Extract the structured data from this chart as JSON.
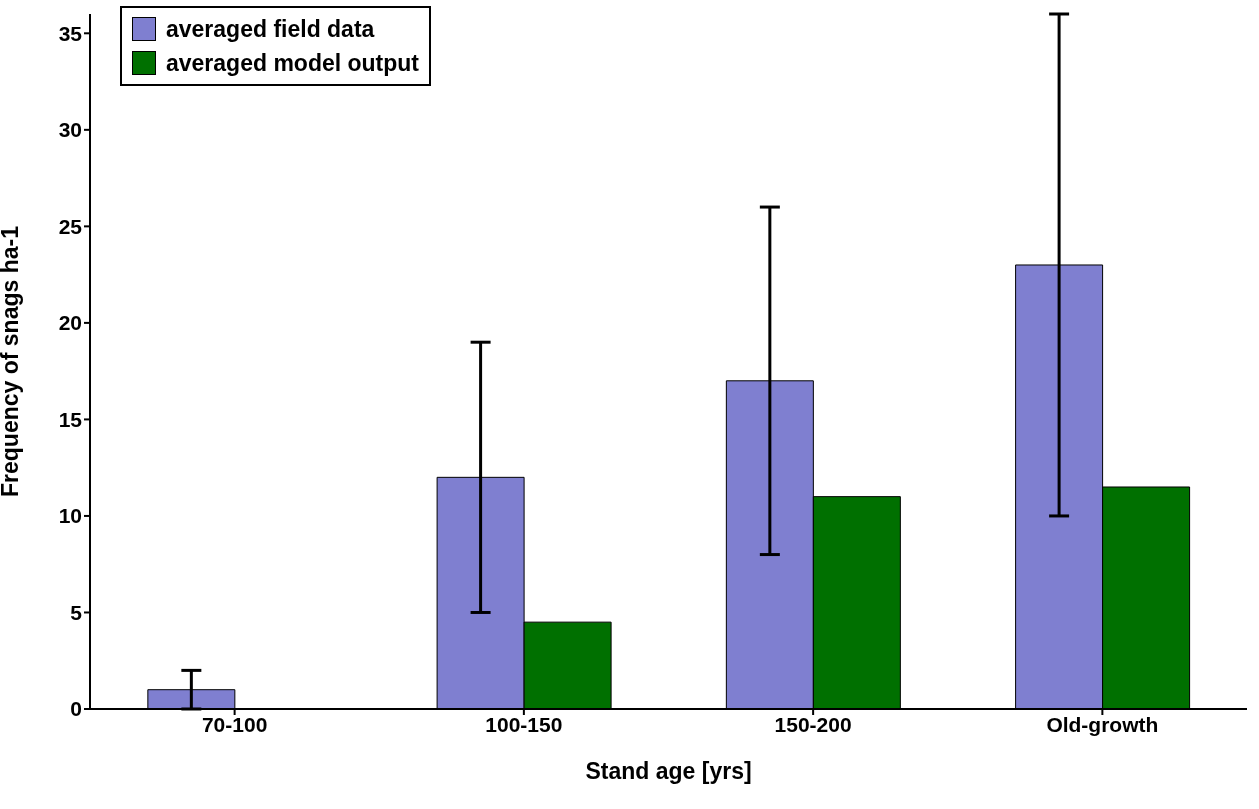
{
  "chart_data": {
    "type": "bar",
    "xlabel": "Stand age [yrs]",
    "ylabel": "Frequency of snags ha-1",
    "categories": [
      "70-100",
      "100-150",
      "150-200",
      "Old-growth"
    ],
    "series": [
      {
        "name": "averaged field data",
        "color": "#7f7fd0",
        "values": [
          1,
          12,
          17,
          23
        ],
        "errors": [
          1,
          7,
          9,
          13
        ]
      },
      {
        "name": "averaged model output",
        "color": "#007000",
        "values": [
          null,
          4.5,
          11,
          11.5
        ]
      }
    ],
    "ylim": [
      0,
      36
    ],
    "yticks": [
      0,
      5,
      10,
      15,
      20,
      25,
      30,
      35
    ],
    "grid": false,
    "legend": "top left"
  }
}
